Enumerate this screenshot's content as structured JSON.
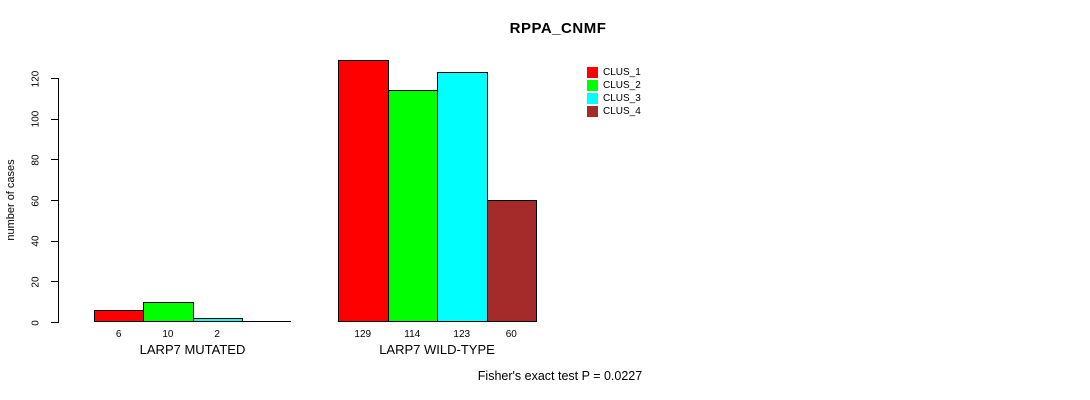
{
  "chart_data": {
    "type": "bar",
    "title": "RPPA_CNMF",
    "ylabel": "number of cases",
    "xlabel": "",
    "ylim": [
      0,
      120
    ],
    "yticks": [
      0,
      20,
      40,
      60,
      80,
      100,
      120
    ],
    "grid": false,
    "legend_position": "top-right",
    "categories": [
      "LARP7 MUTATED",
      "LARP7 WILD-TYPE"
    ],
    "series": [
      {
        "name": "CLUS_1",
        "color": "#FF0000",
        "values": [
          6,
          129
        ]
      },
      {
        "name": "CLUS_2",
        "color": "#00FF00",
        "values": [
          10,
          114
        ]
      },
      {
        "name": "CLUS_3",
        "color": "#00FFFF",
        "values": [
          2,
          123
        ]
      },
      {
        "name": "CLUS_4",
        "color": "#A52A2A",
        "values": [
          0,
          60
        ]
      }
    ],
    "bar_labels": [
      [
        "6",
        "10",
        "2",
        ""
      ],
      [
        "129",
        "114",
        "123",
        "60"
      ]
    ],
    "annotation": "Fisher's exact test P = 0.0227"
  }
}
